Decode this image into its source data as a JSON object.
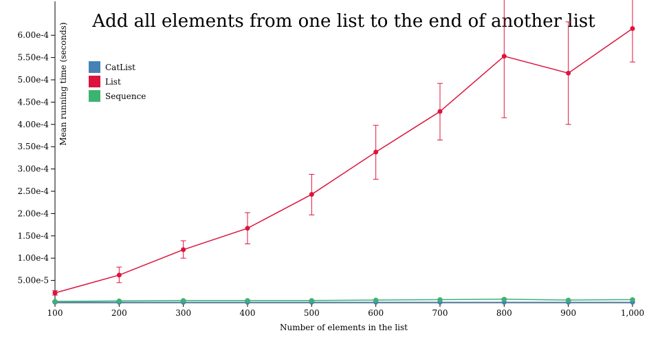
{
  "chart_data": {
    "type": "line",
    "title": "Add all elements from one list to the end of another list",
    "xlabel": "Number of elements in the list",
    "ylabel": "Mean running time (seconds)",
    "x": [
      100,
      200,
      300,
      400,
      500,
      600,
      700,
      800,
      900,
      1000
    ],
    "x_tick_labels": [
      "100",
      "200",
      "300",
      "400",
      "500",
      "600",
      "700",
      "800",
      "900",
      "1,000"
    ],
    "y_tick_values": [
      5e-05,
      0.0001,
      0.00015,
      0.0002,
      0.00025,
      0.0003,
      0.00035,
      0.0004,
      0.00045,
      0.0005,
      0.00055,
      0.0006
    ],
    "y_tick_labels": [
      "5.00e-5",
      "1.00e-4",
      "1.50e-4",
      "2.00e-4",
      "2.50e-4",
      "3.00e-4",
      "3.50e-4",
      "4.00e-4",
      "4.50e-4",
      "5.00e-4",
      "5.50e-4",
      "6.00e-4"
    ],
    "xlim": [
      100,
      1000
    ],
    "ylim": [
      0,
      0.00062
    ],
    "legend_position": "top-left",
    "grid": false,
    "series": [
      {
        "name": "CatList",
        "color": "#4682b4",
        "values": [
          1e-06,
          1e-06,
          1e-06,
          1e-06,
          1e-06,
          1e-06,
          1e-06,
          1e-06,
          1e-06,
          1e-06
        ],
        "err_low": [
          1e-06,
          1e-06,
          1e-06,
          1e-06,
          1e-06,
          1e-06,
          1e-06,
          1e-06,
          1e-06,
          1e-06
        ],
        "err_high": [
          2e-06,
          2e-06,
          2e-06,
          2e-06,
          2e-06,
          2e-06,
          2e-06,
          2e-06,
          2e-06,
          2e-06
        ]
      },
      {
        "name": "List",
        "color": "#dc143c",
        "values": [
          2.2e-05,
          6.2e-05,
          0.000119,
          0.000167,
          0.000243,
          0.000338,
          0.000429,
          0.000553,
          0.000515,
          0.000615
        ],
        "err_low": [
          1.7e-05,
          4.5e-05,
          0.0001,
          0.000132,
          0.000197,
          0.000277,
          0.000365,
          0.000415,
          0.0004,
          0.00054
        ],
        "err_high": [
          2.7e-05,
          8e-05,
          0.000139,
          0.000202,
          0.000288,
          0.000398,
          0.000492,
          0.00069,
          0.00063,
          0.00069
        ]
      },
      {
        "name": "Sequence",
        "color": "#3cb371",
        "values": [
          3e-06,
          4e-06,
          5e-06,
          5e-06,
          5e-06,
          6e-06,
          7e-06,
          8e-06,
          6e-06,
          7e-06
        ],
        "err_low": [
          2e-06,
          3e-06,
          4e-06,
          4e-06,
          4e-06,
          5e-06,
          6e-06,
          6e-06,
          5e-06,
          6e-06
        ],
        "err_high": [
          4e-06,
          5e-06,
          6e-06,
          6e-06,
          6e-06,
          7e-06,
          8e-06,
          1e-05,
          7e-06,
          8e-06
        ]
      }
    ]
  }
}
